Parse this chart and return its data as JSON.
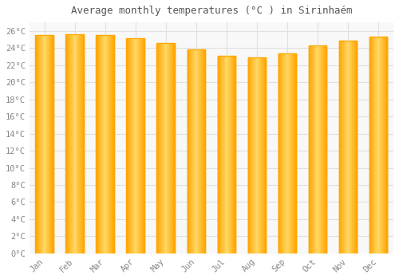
{
  "title": "Average monthly temperatures (°C ) in Sirinhaém",
  "months": [
    "Jan",
    "Feb",
    "Mar",
    "Apr",
    "May",
    "Jun",
    "Jul",
    "Aug",
    "Sep",
    "Oct",
    "Nov",
    "Dec"
  ],
  "values": [
    25.5,
    25.6,
    25.5,
    25.1,
    24.6,
    23.8,
    23.1,
    22.9,
    23.4,
    24.3,
    24.9,
    25.3
  ],
  "bar_color_center": "#FFD966",
  "bar_color_edge": "#FFA500",
  "background_color": "#FFFFFF",
  "plot_bg_color": "#F8F8F8",
  "grid_color": "#E0E0E0",
  "ylim": [
    0,
    27
  ],
  "title_fontsize": 9,
  "tick_fontsize": 7.5,
  "tick_color": "#888888",
  "title_color": "#555555"
}
